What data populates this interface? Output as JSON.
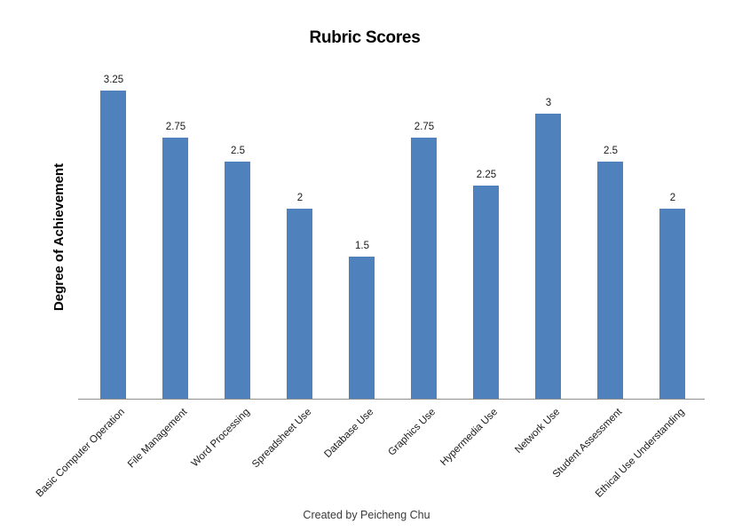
{
  "chart_data": {
    "type": "bar",
    "title": "Rubric Scores",
    "ylabel": "Degree of Achievement",
    "xlabel": "",
    "categories": [
      "Basic Computer Operation",
      "File Management",
      "Word Processing",
      "Spreadsheet Use",
      "Database Use",
      "Graphics Use",
      "Hypermedia Use",
      "Network Use",
      "Student Assessment",
      "Ethical Use Understanding"
    ],
    "values": [
      3.25,
      2.75,
      2.5,
      2,
      1.5,
      2.75,
      2.25,
      3,
      2.5,
      2
    ],
    "data_labels": [
      "3.25",
      "2.75",
      "2.5",
      "2",
      "1.5",
      "2.75",
      "2.25",
      "3",
      "2.5",
      "2"
    ],
    "ylim": [
      0,
      3.5
    ],
    "grid": false,
    "legend": "none",
    "bar_color": "#4F81BD",
    "axis_color": "#8e8e8e"
  },
  "footer": {
    "credit": "Created by Peicheng Chu"
  }
}
